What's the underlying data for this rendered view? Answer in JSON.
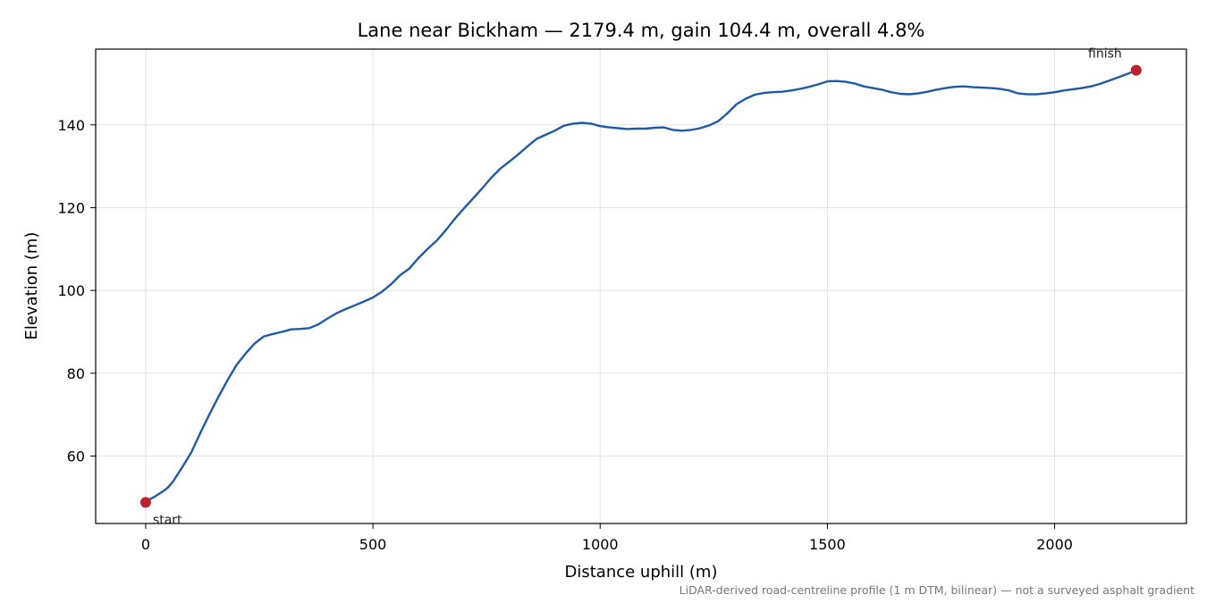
{
  "chart_data": {
    "type": "line",
    "title": "Lane near Bickham — 2179.4 m, gain 104.4 m, overall 4.8%",
    "xlabel": "Distance uphill (m)",
    "ylabel": "Elevation (m)",
    "xlim": [
      -110,
      2290
    ],
    "ylim": [
      43.7,
      158.3
    ],
    "xticks": [
      0,
      500,
      1000,
      1500,
      2000
    ],
    "yticks": [
      60,
      80,
      100,
      120,
      140
    ],
    "grid": true,
    "colors": {
      "line": "#1f5aa6",
      "marker": "#c0202a"
    },
    "series": [
      {
        "x": [
          0,
          20,
          40,
          50,
          60,
          80,
          100,
          120,
          140,
          160,
          180,
          200,
          220,
          240,
          260,
          280,
          300,
          320,
          340,
          360,
          380,
          400,
          420,
          440,
          460,
          480,
          500,
          520,
          540,
          560,
          580,
          600,
          620,
          640,
          660,
          680,
          700,
          720,
          740,
          760,
          780,
          800,
          820,
          840,
          860,
          880,
          900,
          920,
          940,
          960,
          980,
          1000,
          1020,
          1040,
          1060,
          1080,
          1100,
          1120,
          1140,
          1160,
          1180,
          1200,
          1220,
          1240,
          1260,
          1280,
          1300,
          1320,
          1340,
          1360,
          1380,
          1400,
          1420,
          1440,
          1460,
          1480,
          1500,
          1520,
          1540,
          1560,
          1580,
          1600,
          1620,
          1640,
          1660,
          1680,
          1700,
          1720,
          1740,
          1760,
          1780,
          1800,
          1820,
          1840,
          1860,
          1880,
          1900,
          1920,
          1940,
          1960,
          1980,
          2000,
          2020,
          2040,
          2060,
          2080,
          2100,
          2120,
          2140,
          2160,
          2179.4
        ],
        "y": [
          49.0,
          50.2,
          51.6,
          52.5,
          53.8,
          57.2,
          60.8,
          65.5,
          70.0,
          74.3,
          78.3,
          82.0,
          84.8,
          87.2,
          88.9,
          89.5,
          90.0,
          90.6,
          90.7,
          90.9,
          91.8,
          93.2,
          94.5,
          95.5,
          96.4,
          97.3,
          98.3,
          99.7,
          101.5,
          103.7,
          105.3,
          107.8,
          110.0,
          112.0,
          114.5,
          117.3,
          119.8,
          122.2,
          124.6,
          127.2,
          129.4,
          131.1,
          132.9,
          134.8,
          136.6,
          137.6,
          138.6,
          139.8,
          140.3,
          140.5,
          140.3,
          139.7,
          139.4,
          139.2,
          139.0,
          139.1,
          139.1,
          139.3,
          139.4,
          138.8,
          138.6,
          138.8,
          139.2,
          139.9,
          140.9,
          142.8,
          145.0,
          146.3,
          147.3,
          147.7,
          147.9,
          148.0,
          148.3,
          148.7,
          149.2,
          149.8,
          150.5,
          150.6,
          150.4,
          150.0,
          149.3,
          148.9,
          148.5,
          147.9,
          147.5,
          147.4,
          147.6,
          148.0,
          148.5,
          148.9,
          149.2,
          149.3,
          149.1,
          149.0,
          148.9,
          148.7,
          148.3,
          147.6,
          147.4,
          147.4,
          147.6,
          147.9,
          148.3,
          148.6,
          148.9,
          149.3,
          149.9,
          150.7,
          151.5,
          152.3,
          153.2
        ]
      }
    ],
    "annotations": [
      {
        "label": "start",
        "x": 0,
        "y": 48.8
      },
      {
        "label": "finish",
        "x": 2179.4,
        "y": 153.2
      }
    ],
    "footnote": "LiDAR-derived road-centreline profile (1 m DTM, bilinear) — not a surveyed asphalt gradient"
  }
}
